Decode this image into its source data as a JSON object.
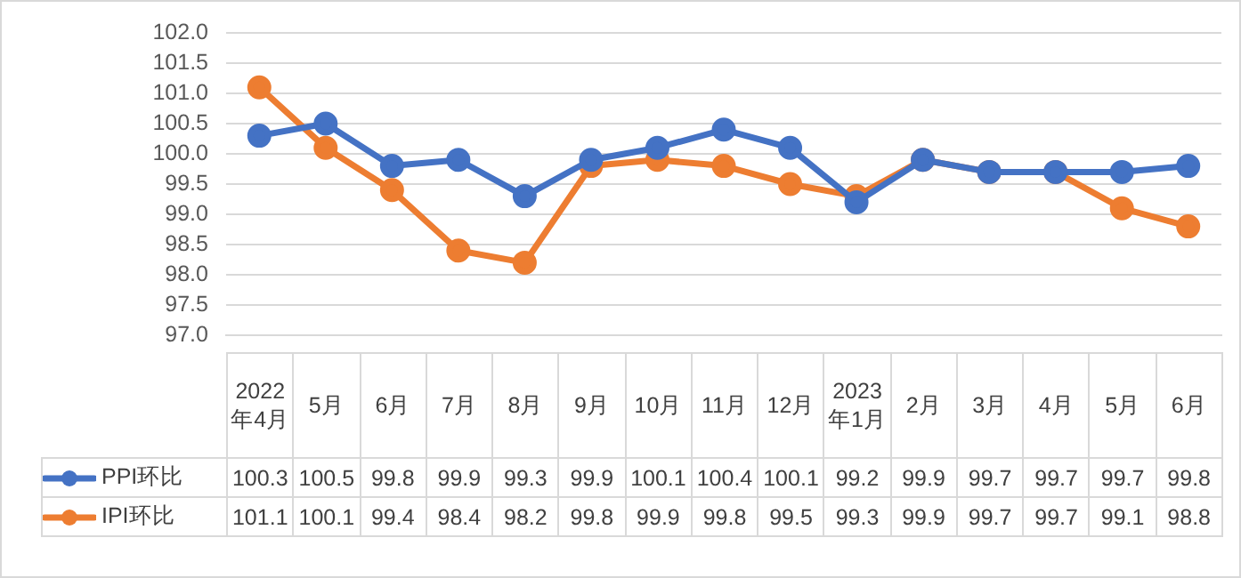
{
  "chart_data": {
    "type": "line",
    "categories": [
      "2022年4月",
      "5月",
      "6月",
      "7月",
      "8月",
      "9月",
      "10月",
      "11月",
      "12月",
      "2023年1月",
      "2月",
      "3月",
      "4月",
      "5月",
      "6月"
    ],
    "series": [
      {
        "name": "PPI环比",
        "color": "#4472c4",
        "values": [
          100.3,
          100.5,
          99.8,
          99.9,
          99.3,
          99.9,
          100.1,
          100.4,
          100.1,
          99.2,
          99.9,
          99.7,
          99.7,
          99.7,
          99.8
        ]
      },
      {
        "name": "IPI环比",
        "color": "#ed7d31",
        "values": [
          101.1,
          100.1,
          99.4,
          98.4,
          98.2,
          99.8,
          99.9,
          99.8,
          99.5,
          99.3,
          99.9,
          99.7,
          99.7,
          99.1,
          98.8
        ]
      }
    ],
    "ylim": [
      97,
      102
    ],
    "yticks": [
      {
        "value": 97,
        "label": "97.0"
      },
      {
        "value": 97.5,
        "label": "97.5"
      },
      {
        "value": 98,
        "label": "98.0"
      },
      {
        "value": 98.5,
        "label": "98.5"
      },
      {
        "value": 99,
        "label": "99.0"
      },
      {
        "value": 99.5,
        "label": "99.5"
      },
      {
        "value": 100,
        "label": "100.0"
      },
      {
        "value": 100.5,
        "label": "100.5"
      },
      {
        "value": 101,
        "label": "101.0"
      },
      {
        "value": 101.5,
        "label": "101.5"
      },
      {
        "value": 102,
        "label": "102.0"
      }
    ],
    "grid": "y",
    "legend": "bottom",
    "marker": "circle",
    "line_style": "solid",
    "data_labels": true
  }
}
